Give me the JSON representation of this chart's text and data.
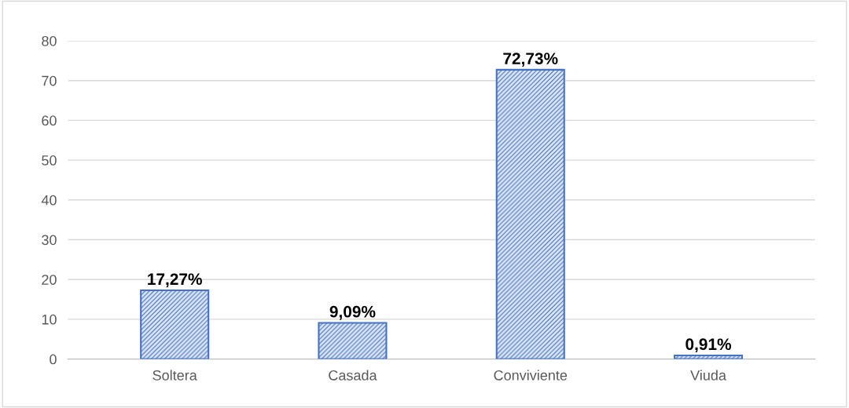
{
  "chart_data": {
    "type": "bar",
    "categories": [
      "Soltera",
      "Casada",
      "Conviviente",
      "Viuda"
    ],
    "values": [
      17.27,
      9.09,
      72.73,
      0.91
    ],
    "value_labels": [
      "17,27%",
      "9,09%",
      "72,73%",
      "0,91%"
    ],
    "color": "#4472c4",
    "ylim": [
      0,
      80
    ],
    "yticks": [
      0,
      10,
      20,
      30,
      40,
      50,
      60,
      70,
      80
    ],
    "grid": "y"
  }
}
